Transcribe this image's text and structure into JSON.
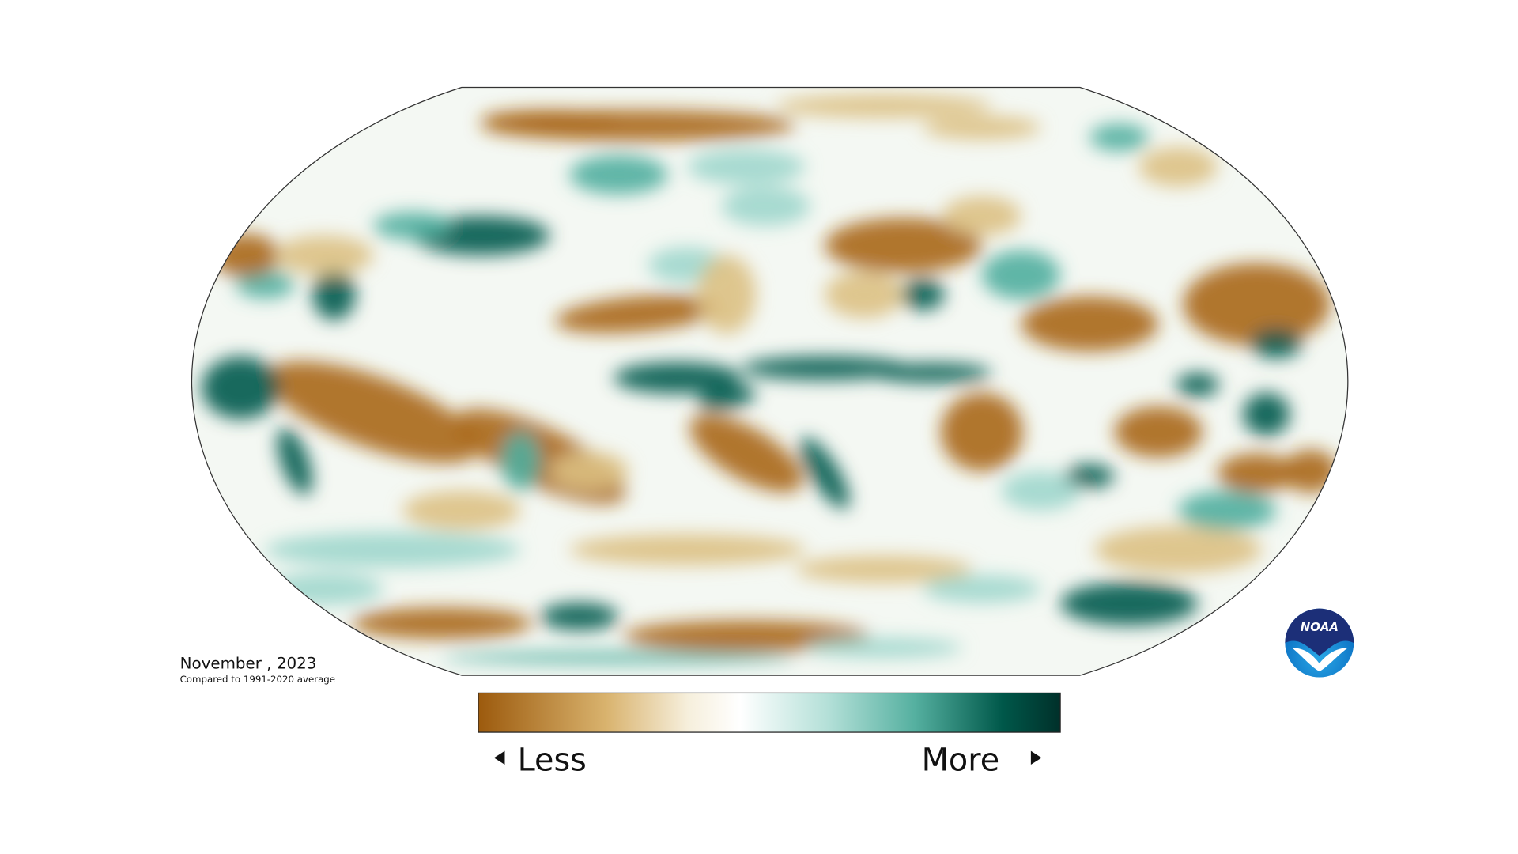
{
  "map": {
    "date": "November , 2023",
    "subtitle": "Compared to 1991-2020 average",
    "legend": {
      "low": "Less",
      "high": "More"
    },
    "logo": "NOAA"
  }
}
